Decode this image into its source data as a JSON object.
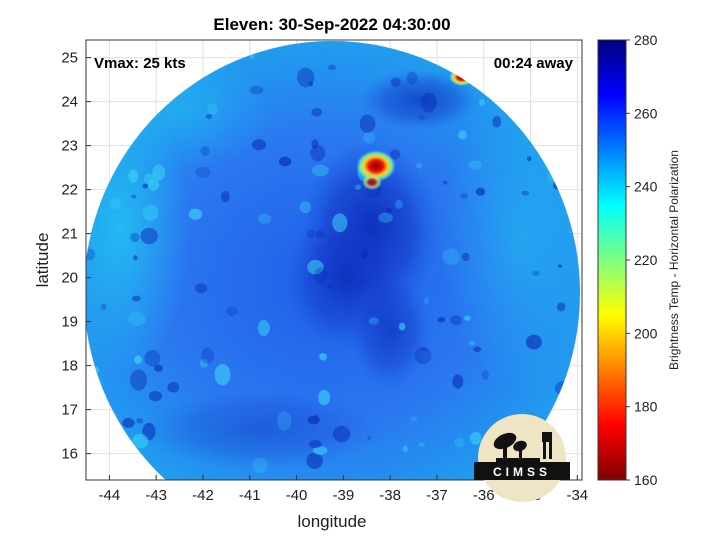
{
  "chart_data": {
    "type": "heatmap",
    "title": "Eleven: 30-Sep-2022 04:30:00",
    "xlabel": "longitude",
    "ylabel": "latitude",
    "xlim": [
      -44.5,
      -33.9
    ],
    "ylim": [
      15.4,
      25.4
    ],
    "xticks": [
      "-44",
      "-43",
      "-42",
      "-41",
      "-40",
      "-39",
      "-38",
      "-37",
      "-36",
      "-35",
      "-34"
    ],
    "yticks": [
      "16",
      "17",
      "18",
      "19",
      "20",
      "21",
      "22",
      "23",
      "24",
      "25"
    ],
    "grid": true,
    "annotations": {
      "vmax": "Vmax: 25 kts",
      "time_away": "00:24 away"
    },
    "colorbar": {
      "label": "Brightness Temp - Horizontal Polarization",
      "range": [
        160,
        280
      ],
      "ticks": [
        "160",
        "180",
        "200",
        "220",
        "240",
        "260",
        "280"
      ],
      "colormap": "jet",
      "colors": [
        "#7f0000",
        "#ff0000",
        "#ff7f00",
        "#ffff00",
        "#7fff7f",
        "#00ffff",
        "#007fff",
        "#0000ff",
        "#00007f"
      ]
    },
    "swath_center": {
      "lon": -39.0,
      "lat": 20.4
    },
    "features": [
      {
        "name": "cold cloud cluster near center",
        "lon": -38.2,
        "lat": 22.5,
        "min_temp": 165
      },
      {
        "name": "cold spot near swath edge",
        "lon": -36.4,
        "lat": 24.5,
        "min_temp": 165
      }
    ],
    "background_temp_range": [
      240,
      275
    ]
  },
  "logo": {
    "text": "CIMSS"
  }
}
